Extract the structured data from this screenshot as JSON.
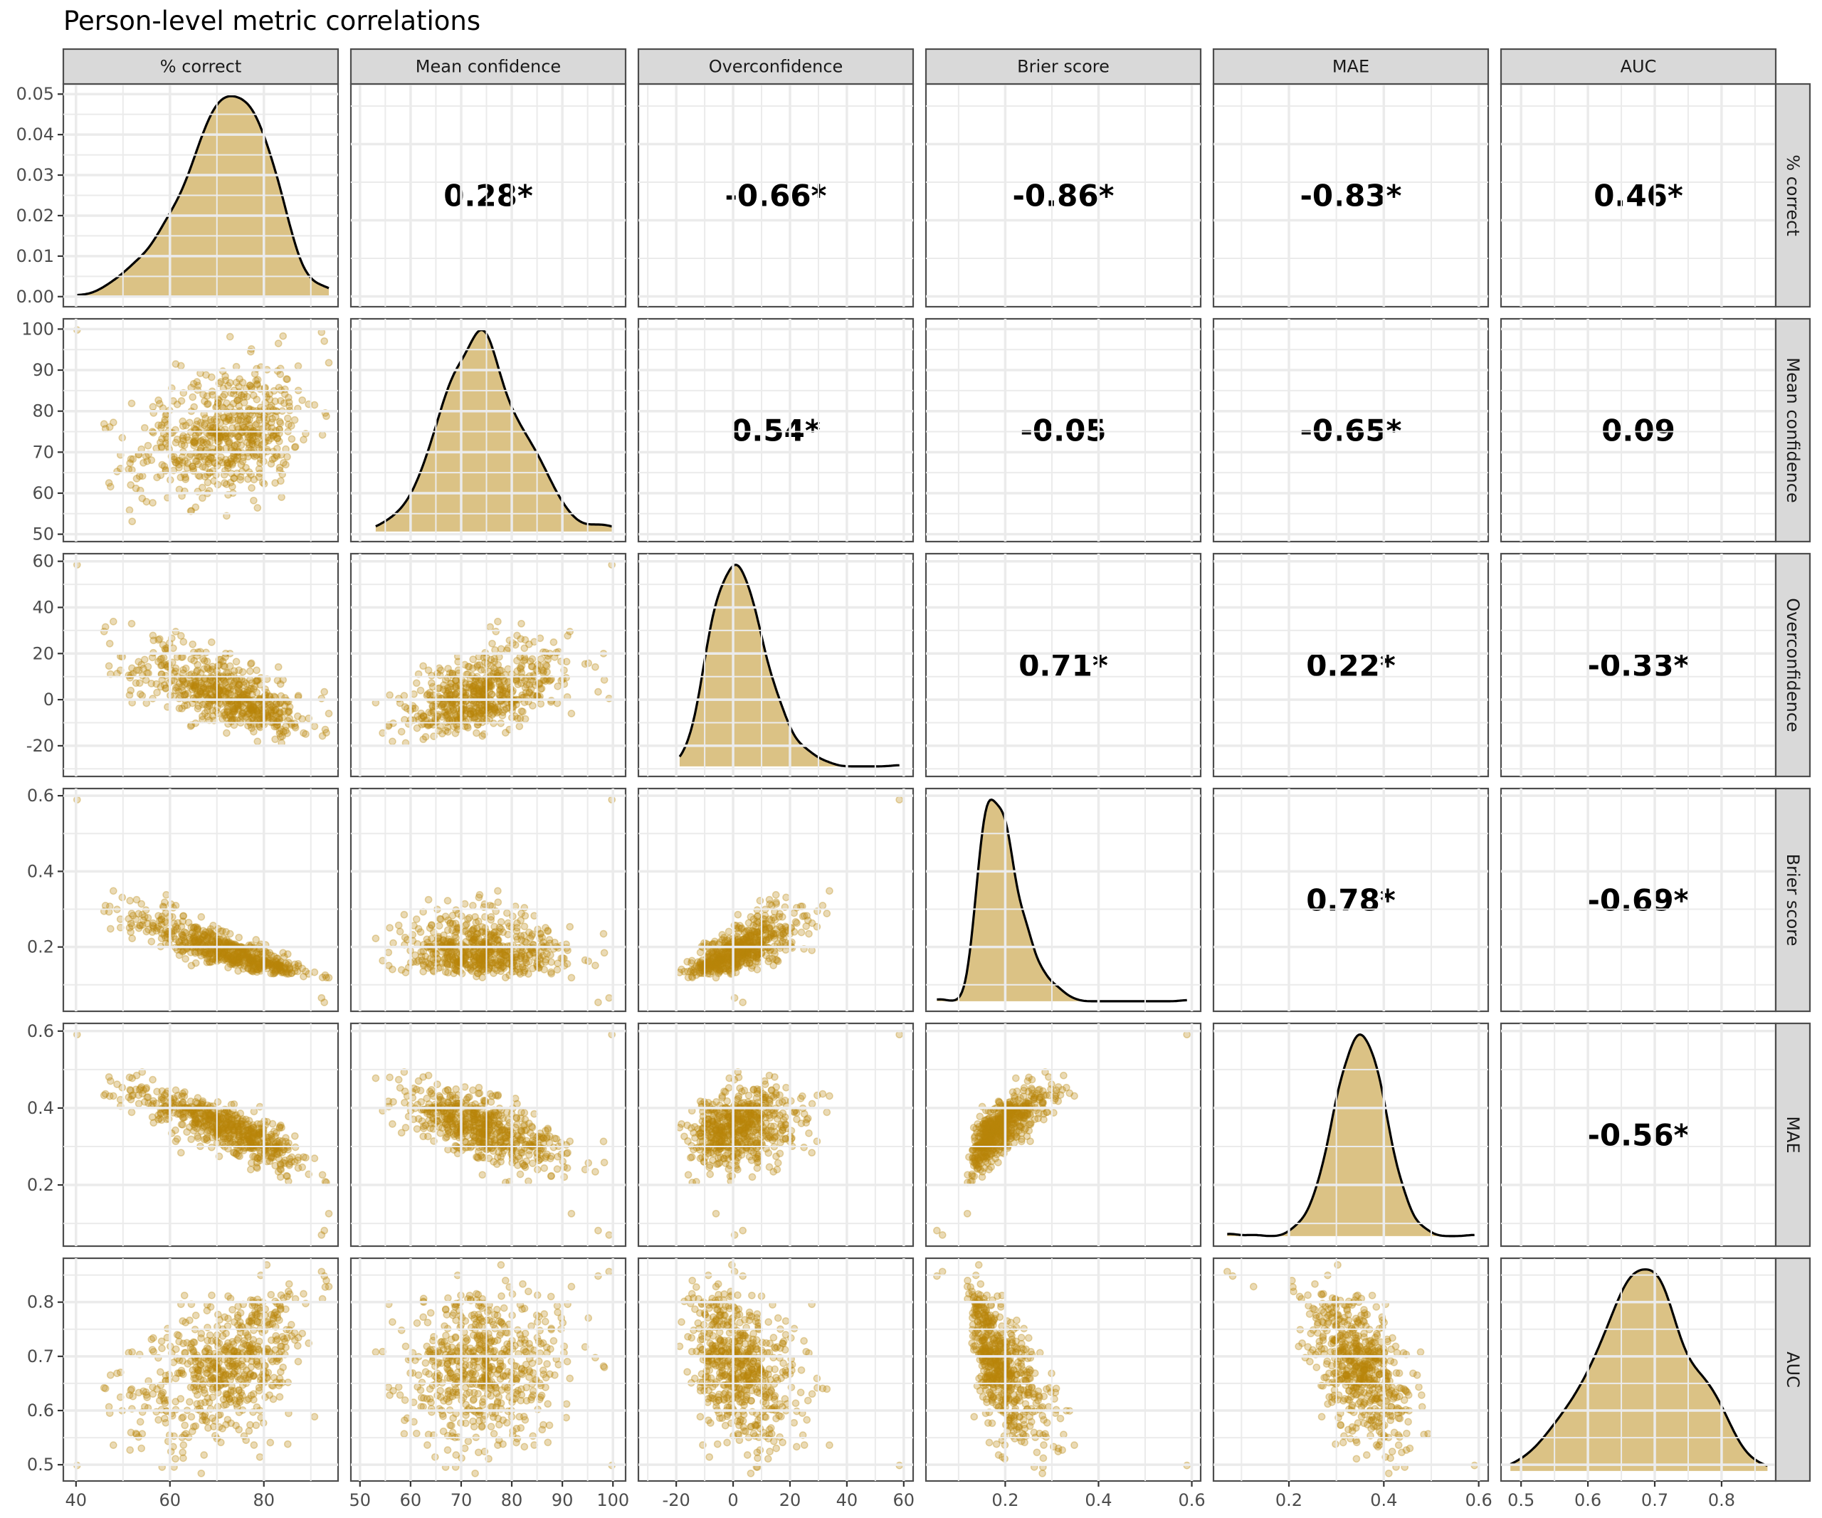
{
  "chart_data": {
    "type": "scatter-matrix",
    "title": "Person-level metric correlations",
    "variables": [
      {
        "key": "pc",
        "label": "% correct",
        "range": [
          37.3,
          95.8
        ],
        "ticks": [
          40,
          60,
          80
        ],
        "tick_labels": [
          "40",
          "60",
          "80"
        ],
        "mean": 71.5,
        "sd": 8.8,
        "skew": -0.35
      },
      {
        "key": "mc",
        "label": "Mean confidence",
        "range": [
          48.2,
          102.5
        ],
        "ticks": [
          50,
          60,
          70,
          80,
          90,
          100
        ],
        "tick_labels": [
          "50",
          "60",
          "70",
          "80",
          "90",
          "100"
        ],
        "mean": 74.0,
        "sd": 8.0,
        "skew": 0.2
      },
      {
        "key": "oc",
        "label": "Overconfidence",
        "range": [
          -33.3,
          63.3
        ],
        "ticks": [
          -20,
          0,
          20,
          40,
          60
        ],
        "tick_labels": [
          "-20",
          "0",
          "20",
          "40",
          "60"
        ],
        "mean": 2.5,
        "sd": 9.5,
        "skew": 0.5
      },
      {
        "key": "br",
        "label": "Brier score",
        "range": [
          0.03,
          0.619
        ],
        "ticks": [
          0.2,
          0.4,
          0.6
        ],
        "tick_labels": [
          "0.2",
          "0.4",
          "0.6"
        ],
        "mean": 0.195,
        "sd": 0.042,
        "skew": 0.9
      },
      {
        "key": "mae",
        "label": "MAE",
        "range": [
          0.041,
          0.62
        ],
        "ticks": [
          0.2,
          0.4,
          0.6
        ],
        "tick_labels": [
          "0.2",
          "0.4",
          "0.6"
        ],
        "mean": 0.35,
        "sd": 0.052,
        "skew": -0.2
      },
      {
        "key": "auc",
        "label": "AUC",
        "range": [
          0.47,
          0.881
        ],
        "ticks": [
          0.5,
          0.6,
          0.7,
          0.8
        ],
        "tick_labels": [
          "0.5",
          "0.6",
          "0.7",
          "0.8"
        ],
        "mean": 0.68,
        "sd": 0.07,
        "skew": -0.1
      }
    ],
    "density_axis": {
      "range": [
        -0.0025,
        0.0525
      ],
      "ticks": [
        0.0,
        0.01,
        0.02,
        0.03,
        0.04,
        0.05
      ],
      "tick_labels": [
        "0.00",
        "0.01",
        "0.02",
        "0.03",
        "0.04",
        "0.05"
      ]
    },
    "correlations": [
      {
        "row": "pc",
        "col": "mc",
        "value": 0.28,
        "label": "0.28*"
      },
      {
        "row": "pc",
        "col": "oc",
        "value": -0.66,
        "label": "-0.66*"
      },
      {
        "row": "pc",
        "col": "br",
        "value": -0.86,
        "label": "-0.86*"
      },
      {
        "row": "pc",
        "col": "mae",
        "value": -0.83,
        "label": "-0.83*"
      },
      {
        "row": "pc",
        "col": "auc",
        "value": 0.46,
        "label": "0.46*"
      },
      {
        "row": "mc",
        "col": "oc",
        "value": 0.54,
        "label": "0.54*"
      },
      {
        "row": "mc",
        "col": "br",
        "value": -0.05,
        "label": "-0.05"
      },
      {
        "row": "mc",
        "col": "mae",
        "value": -0.65,
        "label": "-0.65*"
      },
      {
        "row": "mc",
        "col": "auc",
        "value": 0.09,
        "label": "0.09"
      },
      {
        "row": "oc",
        "col": "br",
        "value": 0.71,
        "label": "0.71*"
      },
      {
        "row": "oc",
        "col": "mae",
        "value": 0.22,
        "label": "0.22*"
      },
      {
        "row": "oc",
        "col": "auc",
        "value": -0.33,
        "label": "-0.33*"
      },
      {
        "row": "br",
        "col": "mae",
        "value": 0.78,
        "label": "0.78*"
      },
      {
        "row": "br",
        "col": "auc",
        "value": -0.69,
        "label": "-0.69*"
      },
      {
        "row": "mae",
        "col": "auc",
        "value": -0.56,
        "label": "-0.56*"
      }
    ],
    "n_points_approx": 600,
    "lower_panels": "scatter",
    "diagonal_panels": "density",
    "upper_panels": "correlation text (* = significant)",
    "grid": true,
    "legend": "none",
    "colors": {
      "point": "#B8860B",
      "density_fill": "#D9C282",
      "density_line": "#000000",
      "strip_bg": "#D9D9D9",
      "panel_border": "#4D4D4D",
      "grid": "#EBEBEB"
    }
  }
}
